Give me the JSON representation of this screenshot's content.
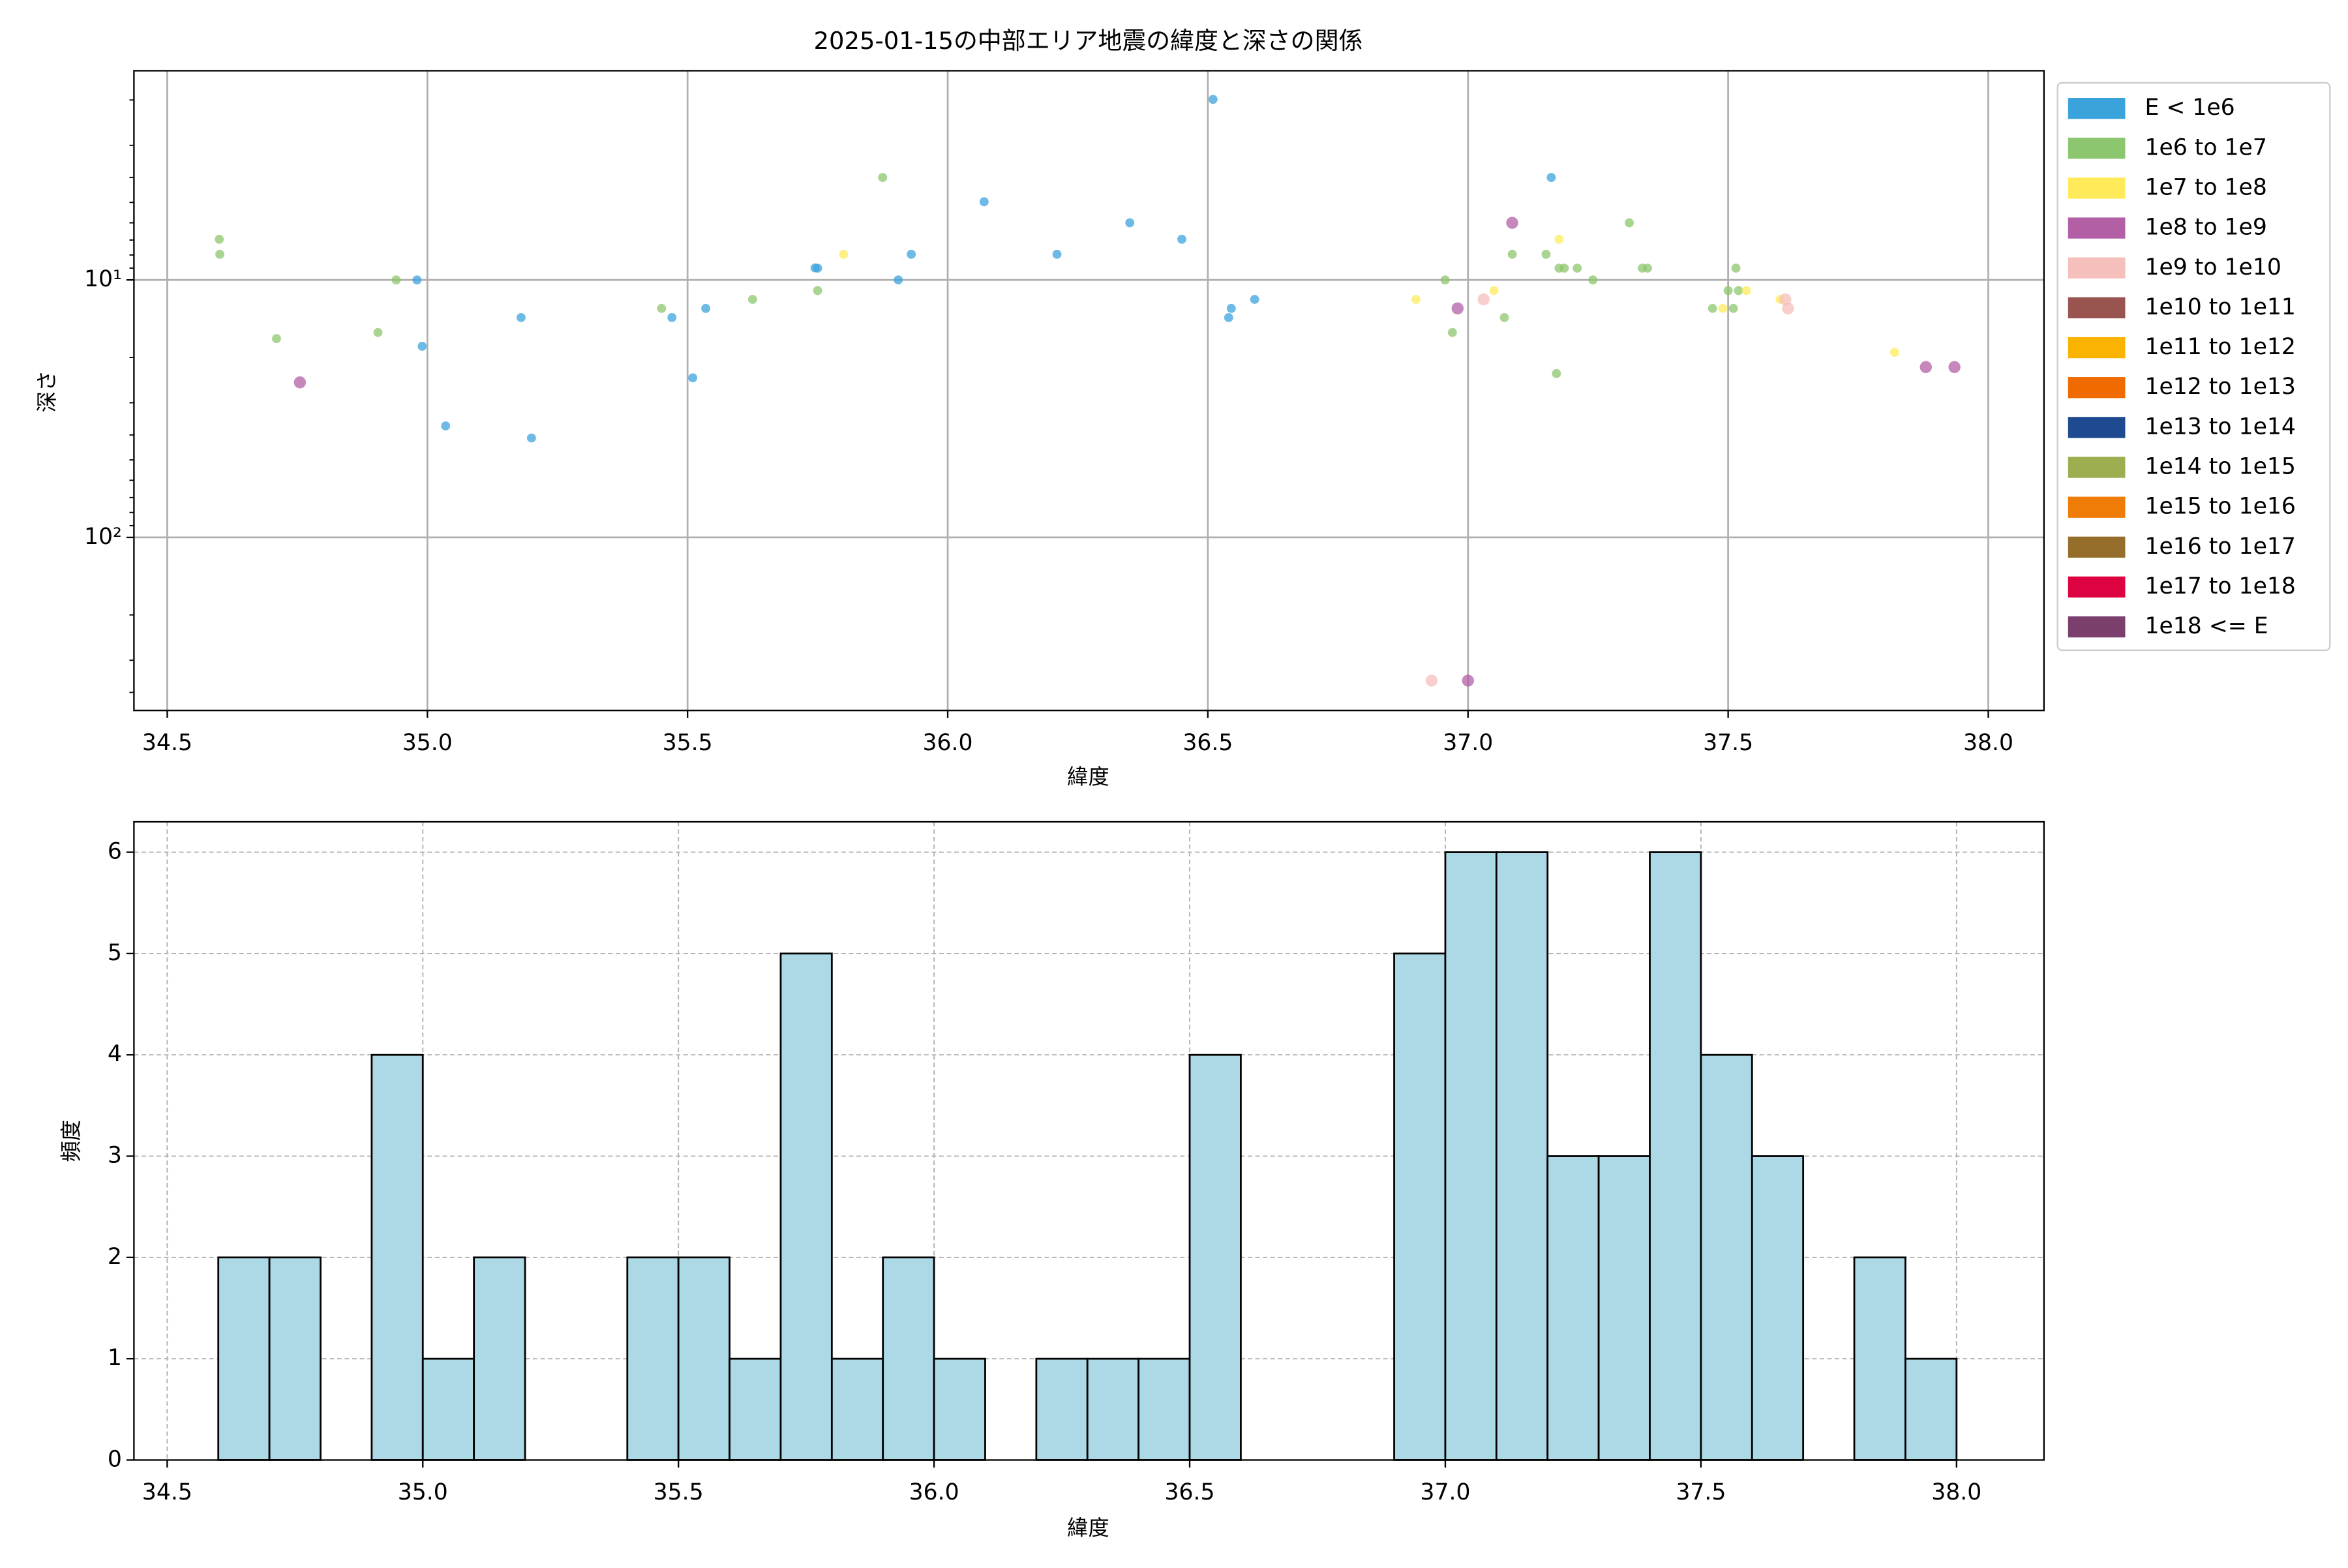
{
  "chart_data": [
    {
      "type": "scatter",
      "title": "2025-01-15の中部エリア地震の緯度と深さの関係",
      "xlabel": "緯度",
      "ylabel": "深さ",
      "xlim": [
        34.436,
        38.107
      ],
      "xticks": [
        34.5,
        {
          "value": 35,
          "label": "35.0"
        },
        35.5,
        {
          "value": 36,
          "label": "36.0"
        },
        36.5,
        {
          "value": 37,
          "label": "37.0"
        },
        37.5,
        {
          "value": 38,
          "label": "38.0"
        }
      ],
      "ylim": [
        1.54,
        470
      ],
      "yscale": "log",
      "y_inverted": true,
      "yticks": [
        {
          "value": 10,
          "label": "10¹"
        },
        {
          "value": 100,
          "label": "10²"
        }
      ],
      "grid": true,
      "legend": "outside right",
      "series": [
        {
          "name": "E < 1e6",
          "color": "#3ba3dc",
          "x": [
            34.98,
            34.99,
            35.035,
            35.18,
            35.2,
            35.47,
            35.51,
            35.535,
            35.745,
            35.75,
            35.905,
            35.93,
            36.07,
            36.21,
            36.35,
            36.45,
            36.51,
            36.54,
            36.545,
            36.59,
            37.16
          ],
          "values": [
            10,
            18.1,
            36.9,
            14,
            41.1,
            14,
            24,
            12.9,
            8.98,
            9,
            10,
            7.95,
            4.97,
            7.95,
            6,
            6.95,
            1.99,
            14,
            12.9,
            11.9,
            4
          ]
        },
        {
          "name": "1e6 to 1e7",
          "color": "#8cc66e",
          "x": [
            34.6,
            34.601,
            34.71,
            34.905,
            34.94,
            35.45,
            35.625,
            35.75,
            35.875,
            36.956,
            36.97,
            37.07,
            37.085,
            37.15,
            37.17,
            37.175,
            37.185,
            37.21,
            37.24,
            37.31,
            37.335,
            37.345,
            37.47,
            37.5,
            37.51,
            37.515,
            37.52
          ],
          "values": [
            6.95,
            7.95,
            16.9,
            16,
            10,
            12.9,
            11.9,
            11,
            4,
            10,
            16,
            14,
            7.95,
            7.95,
            23.1,
            9,
            9,
            9,
            10,
            6,
            9,
            9,
            12.9,
            11,
            12.9,
            9,
            11
          ]
        },
        {
          "name": "1e7 to 1e8",
          "color": "#ffeb5a",
          "x": [
            35.8,
            36.9,
            37.05,
            37.175,
            37.49,
            37.535,
            37.6,
            37.82
          ],
          "values": [
            7.95,
            11.9,
            11,
            6.95,
            12.9,
            11,
            11.9,
            19.1
          ]
        },
        {
          "name": "1e8 to 1e9",
          "color": "#b35fa6",
          "x": [
            34.755,
            36.98,
            37.085,
            37.0,
            37.88,
            37.935
          ],
          "values": [
            25,
            12.9,
            6,
            360,
            21.8,
            21.8
          ]
        },
        {
          "name": "1e9 to 1e10",
          "color": "#f5bfbb",
          "x": [
            36.93,
            37.03,
            37.61,
            37.615
          ],
          "values": [
            360,
            11.9,
            11.9,
            12.9
          ]
        },
        {
          "name": "1e10 to 1e11",
          "color": "#9a5450",
          "x": [],
          "values": []
        },
        {
          "name": "1e11 to 1e12",
          "color": "#f9b300",
          "x": [],
          "values": []
        },
        {
          "name": "1e12 to 1e13",
          "color": "#ef6a00",
          "x": [],
          "values": []
        },
        {
          "name": "1e13 to 1e14",
          "color": "#1e4a8f",
          "x": [],
          "values": []
        },
        {
          "name": "1e14 to 1e15",
          "color": "#9caf50",
          "x": [],
          "values": []
        },
        {
          "name": "1e15 to 1e16",
          "color": "#ee7c06",
          "x": [],
          "values": []
        },
        {
          "name": "1e16 to 1e17",
          "color": "#956e2b",
          "x": [],
          "values": []
        },
        {
          "name": "1e17 to 1e18",
          "color": "#dd0340",
          "x": [],
          "values": []
        },
        {
          "name": "1e18 <= E",
          "color": "#7a3f6c",
          "x": [],
          "values": []
        }
      ]
    },
    {
      "type": "histogram",
      "xlabel": "緯度",
      "ylabel": "頻度",
      "color": "#add8e6",
      "bins": [
        34.6,
        34.7,
        34.8,
        34.9,
        35.0,
        35.1,
        35.2,
        35.3,
        35.4,
        35.5,
        35.6,
        35.7,
        35.8,
        35.9,
        36.0,
        36.1,
        36.2,
        36.3,
        36.4,
        36.5,
        36.6,
        36.7,
        36.8,
        36.9,
        37.0,
        37.1,
        37.2,
        37.3,
        37.4,
        37.5,
        37.6,
        37.7,
        37.8,
        37.9,
        38.0
      ],
      "values": [
        2,
        2,
        0,
        4,
        1,
        2,
        0,
        0,
        2,
        2,
        1,
        5,
        1,
        2,
        1,
        0,
        1,
        1,
        1,
        4,
        0,
        0,
        0,
        5,
        6,
        6,
        3,
        3,
        6,
        4,
        3,
        0,
        2,
        1
      ],
      "xlim": [
        34.435,
        38.171
      ],
      "xticks": [
        34.5,
        {
          "value": 35,
          "label": "35.0"
        },
        35.5,
        {
          "value": 36,
          "label": "36.0"
        },
        36.5,
        {
          "value": 37,
          "label": "37.0"
        },
        37.5,
        {
          "value": 38,
          "label": "38.0"
        }
      ],
      "ylim": [
        0,
        6.3
      ],
      "yticks": [
        0,
        1,
        2,
        3,
        4,
        5,
        6
      ],
      "grid": true
    }
  ]
}
